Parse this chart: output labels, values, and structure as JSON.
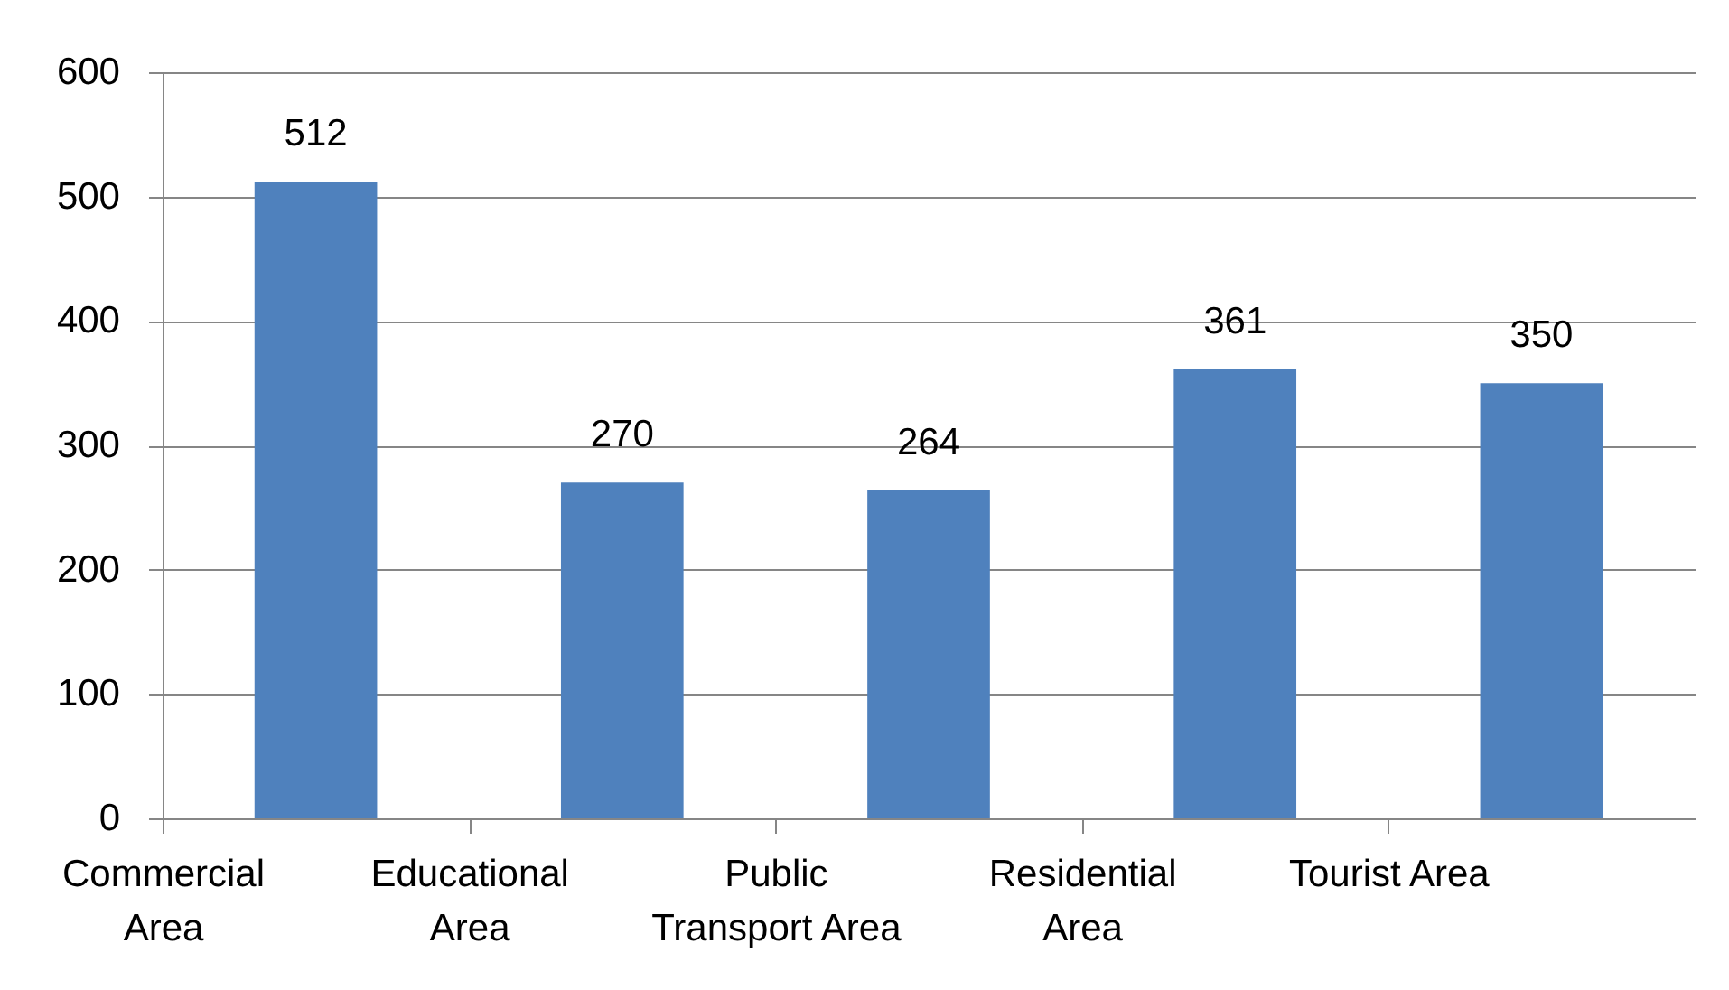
{
  "chart_data": {
    "type": "bar",
    "categories": [
      "Commercial Area",
      "Educational Area",
      "Public Transport Area",
      "Residential Area",
      "Tourist Area"
    ],
    "values": [
      512,
      270,
      264,
      361,
      350
    ],
    "color": "#4f81bd",
    "ylim": [
      0,
      600
    ],
    "yticks": [
      0,
      100,
      200,
      300,
      400,
      500,
      600
    ],
    "grid": "y",
    "data_labels": true
  }
}
